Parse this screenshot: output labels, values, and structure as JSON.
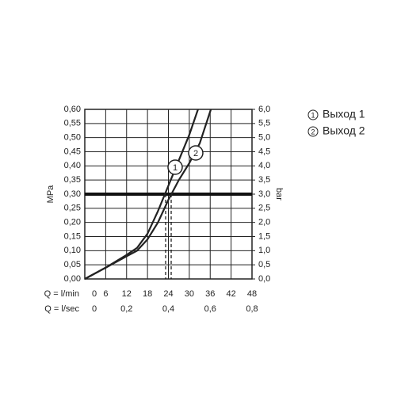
{
  "chart_data": {
    "type": "line",
    "ylabel": "MPa",
    "y2label": "bar",
    "xlabel": "Q = l/min",
    "x2label": "Q = l/sec",
    "xlim": [
      0,
      48
    ],
    "xticks": [
      0,
      6,
      12,
      18,
      24,
      30,
      36,
      42,
      48
    ],
    "x2lim": [
      0,
      0.8
    ],
    "x2ticks": [
      0,
      {
        "value": 0.2,
        "label": "0,2"
      },
      {
        "value": 0.4,
        "label": "0,4"
      },
      {
        "value": 0.6,
        "label": "0,6"
      },
      {
        "value": 0.8,
        "label": "0,8"
      }
    ],
    "ylim": [
      0,
      0.6
    ],
    "yticks": [
      {
        "value": 0,
        "label": "0,00"
      },
      {
        "value": 0.05,
        "label": "0,05"
      },
      {
        "value": 0.1,
        "label": "0,10"
      },
      {
        "value": 0.15,
        "label": "0,15"
      },
      {
        "value": 0.2,
        "label": "0,20"
      },
      {
        "value": 0.25,
        "label": "0,25"
      },
      {
        "value": 0.3,
        "label": "0,30"
      },
      {
        "value": 0.35,
        "label": "0,35"
      },
      {
        "value": 0.4,
        "label": "0,40"
      },
      {
        "value": 0.45,
        "label": "0,45"
      },
      {
        "value": 0.5,
        "label": "0,50"
      },
      {
        "value": 0.55,
        "label": "0,55"
      },
      {
        "value": 0.6,
        "label": "0,60"
      }
    ],
    "y2lim": [
      0,
      6
    ],
    "y2ticks": [
      {
        "value": 0,
        "label": "0,0"
      },
      {
        "value": 0.5,
        "label": "0,5"
      },
      {
        "value": 1,
        "label": "1,0"
      },
      {
        "value": 1.5,
        "label": "1,5"
      },
      {
        "value": 2,
        "label": "2,0"
      },
      {
        "value": 2.5,
        "label": "2,5"
      },
      {
        "value": 3,
        "label": "3,0"
      },
      {
        "value": 3.5,
        "label": "3,5"
      },
      {
        "value": 4,
        "label": "4,0"
      },
      {
        "value": 4.5,
        "label": "4,5"
      },
      {
        "value": 5,
        "label": "5,0"
      },
      {
        "value": 5.5,
        "label": "5,5"
      },
      {
        "value": 6,
        "label": "6,0"
      }
    ],
    "grid": true,
    "hline": 0.3,
    "vlines": [
      23.2,
      24.8
    ],
    "series": [
      {
        "name": "Выход 1",
        "label": "1",
        "color": "#222222",
        "x": [
          0,
          6,
          12,
          15,
          18,
          21,
          24,
          27,
          30,
          32.5
        ],
        "values": [
          0,
          0.04,
          0.085,
          0.11,
          0.16,
          0.24,
          0.33,
          0.42,
          0.51,
          0.6
        ]
      },
      {
        "name": "Выход 2",
        "label": "2",
        "color": "#222222",
        "x": [
          0,
          6,
          12,
          15,
          18,
          21,
          24,
          27,
          30,
          33,
          36.2
        ],
        "values": [
          0,
          0.04,
          0.08,
          0.1,
          0.14,
          0.2,
          0.28,
          0.35,
          0.41,
          0.48,
          0.6
        ]
      }
    ]
  }
}
